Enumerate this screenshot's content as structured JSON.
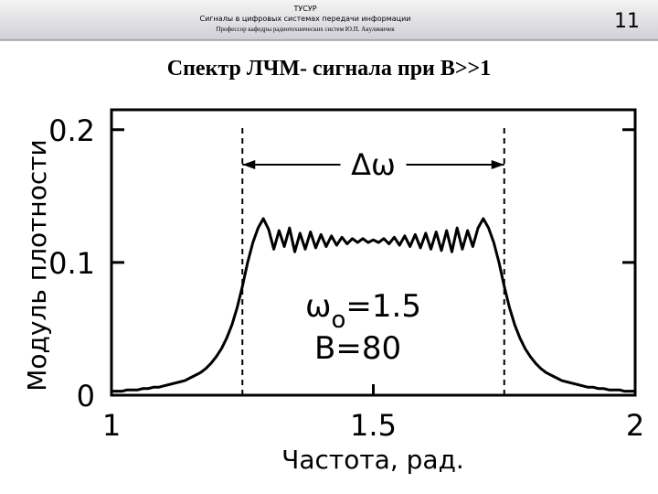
{
  "header": {
    "org": "ТУСУР",
    "course": "Сигналы в цифровых системах передачи информации",
    "author": "Профессор кафедры радиотехнических систем Ю.П. Акулиничев",
    "page": "11"
  },
  "slide_title": "Спектр ЛЧМ- сигнала  при B>>1",
  "chart_data": {
    "type": "line",
    "x_label": "Частота, рад.",
    "y_label": "Модуль плотности",
    "color": "#000000",
    "x": [
      1.0,
      1.01,
      1.02,
      1.03,
      1.04,
      1.05,
      1.06,
      1.07,
      1.08,
      1.09,
      1.1,
      1.11,
      1.12,
      1.13,
      1.14,
      1.15,
      1.16,
      1.17,
      1.18,
      1.19,
      1.2,
      1.21,
      1.22,
      1.23,
      1.24,
      1.25,
      1.26,
      1.27,
      1.28,
      1.29,
      1.3,
      1.31,
      1.32,
      1.33,
      1.34,
      1.35,
      1.36,
      1.37,
      1.38,
      1.39,
      1.4,
      1.41,
      1.42,
      1.43,
      1.44,
      1.45,
      1.46,
      1.47,
      1.48,
      1.49,
      1.5,
      1.51,
      1.52,
      1.53,
      1.54,
      1.55,
      1.56,
      1.57,
      1.58,
      1.59,
      1.6,
      1.61,
      1.62,
      1.63,
      1.64,
      1.65,
      1.66,
      1.67,
      1.68,
      1.69,
      1.7,
      1.71,
      1.72,
      1.73,
      1.74,
      1.75,
      1.76,
      1.77,
      1.78,
      1.79,
      1.8,
      1.81,
      1.82,
      1.83,
      1.84,
      1.85,
      1.86,
      1.87,
      1.88,
      1.89,
      1.9,
      1.91,
      1.92,
      1.93,
      1.94,
      1.95,
      1.96,
      1.97,
      1.98,
      1.99,
      2.0
    ],
    "values": [
      0.003,
      0.003,
      0.003,
      0.004,
      0.004,
      0.004,
      0.005,
      0.005,
      0.006,
      0.006,
      0.007,
      0.008,
      0.009,
      0.01,
      0.011,
      0.013,
      0.015,
      0.017,
      0.02,
      0.024,
      0.029,
      0.035,
      0.043,
      0.053,
      0.066,
      0.082,
      0.1,
      0.115,
      0.126,
      0.133,
      0.125,
      0.11,
      0.124,
      0.112,
      0.126,
      0.108,
      0.122,
      0.11,
      0.123,
      0.111,
      0.121,
      0.112,
      0.12,
      0.113,
      0.119,
      0.114,
      0.118,
      0.115,
      0.118,
      0.115,
      0.117,
      0.115,
      0.118,
      0.114,
      0.119,
      0.113,
      0.12,
      0.112,
      0.121,
      0.111,
      0.122,
      0.11,
      0.123,
      0.109,
      0.124,
      0.108,
      0.126,
      0.11,
      0.124,
      0.112,
      0.126,
      0.133,
      0.126,
      0.115,
      0.1,
      0.082,
      0.066,
      0.053,
      0.043,
      0.035,
      0.029,
      0.024,
      0.02,
      0.017,
      0.015,
      0.013,
      0.011,
      0.01,
      0.009,
      0.008,
      0.007,
      0.006,
      0.006,
      0.005,
      0.005,
      0.004,
      0.004,
      0.004,
      0.003,
      0.003,
      0.003
    ],
    "xlim": [
      1,
      2
    ],
    "xticks": [
      1,
      1.5,
      2
    ],
    "ylim": [
      0,
      0.215
    ],
    "yticks": [
      0,
      0.1,
      0.2
    ],
    "vlines": [
      1.25,
      1.75
    ],
    "span_label": "Δω",
    "omega_label": {
      "symbol": "ω",
      "subscript": "o",
      "value": "=1.5"
    },
    "b_label": "B=80"
  }
}
